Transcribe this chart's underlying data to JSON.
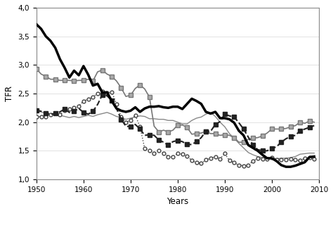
{
  "xlabel": "Years",
  "ylabel": "TFR",
  "ylim": [
    1.0,
    4.0
  ],
  "xlim": [
    1950,
    2010
  ],
  "yticks": [
    1.0,
    1.5,
    2.0,
    2.5,
    3.0,
    3.5,
    4.0
  ],
  "xticks": [
    1950,
    1960,
    1970,
    1980,
    1990,
    2000,
    2010
  ],
  "germany": {
    "years": [
      1950,
      1951,
      1952,
      1953,
      1954,
      1955,
      1956,
      1957,
      1958,
      1959,
      1960,
      1961,
      1962,
      1963,
      1964,
      1965,
      1966,
      1967,
      1968,
      1969,
      1970,
      1971,
      1972,
      1973,
      1974,
      1975,
      1976,
      1977,
      1978,
      1979,
      1980,
      1981,
      1982,
      1983,
      1984,
      1985,
      1986,
      1987,
      1988,
      1989,
      1990,
      1991,
      1992,
      1993,
      1994,
      1995,
      1996,
      1997,
      1998,
      1999,
      2000,
      2001,
      2002,
      2003,
      2004,
      2005,
      2006,
      2007,
      2008,
      2009
    ],
    "tfr": [
      2.1,
      2.1,
      2.1,
      2.13,
      2.15,
      2.13,
      2.2,
      2.23,
      2.25,
      2.28,
      2.37,
      2.4,
      2.44,
      2.5,
      2.54,
      2.51,
      2.53,
      2.32,
      2.1,
      2.0,
      2.03,
      2.12,
      1.92,
      1.54,
      1.51,
      1.45,
      1.5,
      1.46,
      1.4,
      1.4,
      1.45,
      1.44,
      1.41,
      1.33,
      1.29,
      1.28,
      1.34,
      1.37,
      1.4,
      1.36,
      1.45,
      1.33,
      1.29,
      1.25,
      1.24,
      1.25,
      1.32,
      1.37,
      1.36,
      1.36,
      1.38,
      1.35,
      1.34,
      1.34,
      1.36,
      1.34,
      1.33,
      1.37,
      1.38,
      1.36
    ],
    "color": "#444444",
    "linestyle": ":",
    "marker": "o",
    "markersize": 3.5,
    "markerfacecolor": "white",
    "markeredgecolor": "#444444",
    "linewidth": 1.0
  },
  "poland": {
    "years": [
      1950,
      1951,
      1952,
      1953,
      1954,
      1955,
      1956,
      1957,
      1958,
      1959,
      1960,
      1961,
      1962,
      1963,
      1964,
      1965,
      1966,
      1967,
      1968,
      1969,
      1970,
      1971,
      1972,
      1973,
      1974,
      1975,
      1976,
      1977,
      1978,
      1979,
      1980,
      1981,
      1982,
      1983,
      1984,
      1985,
      1986,
      1987,
      1988,
      1989,
      1990,
      1991,
      1992,
      1993,
      1994,
      1995,
      1996,
      1997,
      1998,
      1999,
      2000,
      2001,
      2002,
      2003,
      2004,
      2005,
      2006,
      2007,
      2008,
      2009
    ],
    "tfr": [
      3.71,
      3.63,
      3.5,
      3.42,
      3.3,
      3.1,
      2.95,
      2.78,
      2.9,
      2.82,
      2.98,
      2.83,
      2.64,
      2.67,
      2.52,
      2.52,
      2.37,
      2.24,
      2.2,
      2.18,
      2.2,
      2.26,
      2.18,
      2.24,
      2.27,
      2.27,
      2.28,
      2.26,
      2.25,
      2.27,
      2.27,
      2.23,
      2.32,
      2.41,
      2.37,
      2.32,
      2.18,
      2.15,
      2.18,
      2.07,
      2.07,
      2.05,
      1.99,
      1.85,
      1.77,
      1.6,
      1.55,
      1.5,
      1.43,
      1.37,
      1.37,
      1.32,
      1.25,
      1.22,
      1.22,
      1.24,
      1.27,
      1.3,
      1.39,
      1.4
    ],
    "color": "#000000",
    "linestyle": "-",
    "linewidth": 2.5
  },
  "ukraine": {
    "years": [
      1950,
      1951,
      1952,
      1953,
      1954,
      1955,
      1956,
      1957,
      1958,
      1959,
      1960,
      1961,
      1962,
      1963,
      1964,
      1965,
      1966,
      1967,
      1968,
      1969,
      1970,
      1971,
      1972,
      1973,
      1974,
      1975,
      1976,
      1977,
      1978,
      1979,
      1980,
      1981,
      1982,
      1983,
      1984,
      1985,
      1986,
      1987,
      1988,
      1989,
      1990,
      1991,
      1992,
      1993,
      1994,
      1995,
      1996,
      1997,
      1998,
      1999,
      2000,
      2001,
      2002,
      2003,
      2004,
      2005,
      2006,
      2007,
      2008,
      2009
    ],
    "tfr": [
      2.2,
      2.18,
      2.15,
      2.13,
      2.12,
      2.12,
      2.1,
      2.08,
      2.1,
      2.08,
      2.1,
      2.12,
      2.1,
      2.13,
      2.15,
      2.17,
      2.14,
      2.1,
      2.08,
      2.05,
      2.07,
      2.09,
      2.11,
      2.1,
      2.06,
      2.06,
      2.05,
      2.05,
      2.03,
      2.03,
      2.0,
      1.97,
      1.97,
      2.03,
      2.07,
      2.09,
      2.14,
      2.17,
      2.1,
      2.0,
      1.92,
      1.8,
      1.72,
      1.63,
      1.55,
      1.47,
      1.43,
      1.4,
      1.38,
      1.38,
      1.37,
      1.36,
      1.37,
      1.37,
      1.38,
      1.4,
      1.44,
      1.45,
      1.46,
      1.46
    ],
    "color": "#888888",
    "linestyle": "-",
    "linewidth": 1.0
  },
  "france": {
    "years": [
      1950,
      1951,
      1952,
      1953,
      1954,
      1955,
      1956,
      1957,
      1958,
      1959,
      1960,
      1961,
      1962,
      1963,
      1964,
      1965,
      1966,
      1967,
      1968,
      1969,
      1970,
      1971,
      1972,
      1973,
      1974,
      1975,
      1976,
      1977,
      1978,
      1979,
      1980,
      1981,
      1982,
      1983,
      1984,
      1985,
      1986,
      1987,
      1988,
      1989,
      1990,
      1991,
      1992,
      1993,
      1994,
      1995,
      1996,
      1997,
      1998,
      1999,
      2000,
      2001,
      2002,
      2003,
      2004,
      2005,
      2006,
      2007,
      2008,
      2009
    ],
    "tfr": [
      2.93,
      2.84,
      2.8,
      2.75,
      2.75,
      2.73,
      2.73,
      2.73,
      2.72,
      2.73,
      2.73,
      2.75,
      2.72,
      2.88,
      2.91,
      2.84,
      2.8,
      2.72,
      2.6,
      2.45,
      2.47,
      2.59,
      2.65,
      2.58,
      2.44,
      1.93,
      1.83,
      1.86,
      1.83,
      1.86,
      1.95,
      1.95,
      1.91,
      1.79,
      1.8,
      1.81,
      1.84,
      1.8,
      1.8,
      1.77,
      1.78,
      1.77,
      1.73,
      1.65,
      1.65,
      1.7,
      1.72,
      1.73,
      1.76,
      1.81,
      1.88,
      1.88,
      1.88,
      1.89,
      1.92,
      1.94,
      2.0,
      1.98,
      2.02,
      2.0
    ],
    "color": "#777777",
    "linestyle": "-",
    "marker": "s",
    "markersize": 4.5,
    "markerfacecolor": "#aaaaaa",
    "markeredgecolor": "#777777",
    "linewidth": 1.2,
    "markevery": 2
  },
  "sweden": {
    "years": [
      1950,
      1951,
      1952,
      1953,
      1954,
      1955,
      1956,
      1957,
      1958,
      1959,
      1960,
      1961,
      1962,
      1963,
      1964,
      1965,
      1966,
      1967,
      1968,
      1969,
      1970,
      1971,
      1972,
      1973,
      1974,
      1975,
      1976,
      1977,
      1978,
      1979,
      1980,
      1981,
      1982,
      1983,
      1984,
      1985,
      1986,
      1987,
      1988,
      1989,
      1990,
      1991,
      1992,
      1993,
      1994,
      1995,
      1996,
      1997,
      1998,
      1999,
      2000,
      2001,
      2002,
      2003,
      2004,
      2005,
      2006,
      2007,
      2008,
      2009
    ],
    "tfr": [
      2.21,
      2.19,
      2.16,
      2.14,
      2.15,
      2.18,
      2.23,
      2.17,
      2.19,
      2.24,
      2.17,
      2.14,
      2.19,
      2.31,
      2.48,
      2.46,
      2.38,
      2.24,
      2.05,
      1.93,
      1.92,
      1.96,
      1.88,
      1.77,
      1.78,
      1.77,
      1.69,
      1.65,
      1.6,
      1.66,
      1.68,
      1.66,
      1.61,
      1.61,
      1.66,
      1.73,
      1.84,
      1.84,
      1.96,
      2.01,
      2.14,
      2.11,
      2.09,
      1.99,
      1.88,
      1.74,
      1.6,
      1.52,
      1.5,
      1.5,
      1.54,
      1.57,
      1.65,
      1.71,
      1.75,
      1.77,
      1.85,
      1.88,
      1.91,
      1.94
    ],
    "color": "#222222",
    "linestyle": "--",
    "marker": "s",
    "markersize": 4.5,
    "markerfacecolor": "#222222",
    "markeredgecolor": "#222222",
    "linewidth": 1.5,
    "markevery": 2
  },
  "background_color": "#ffffff",
  "grid_color": "#dddddd"
}
